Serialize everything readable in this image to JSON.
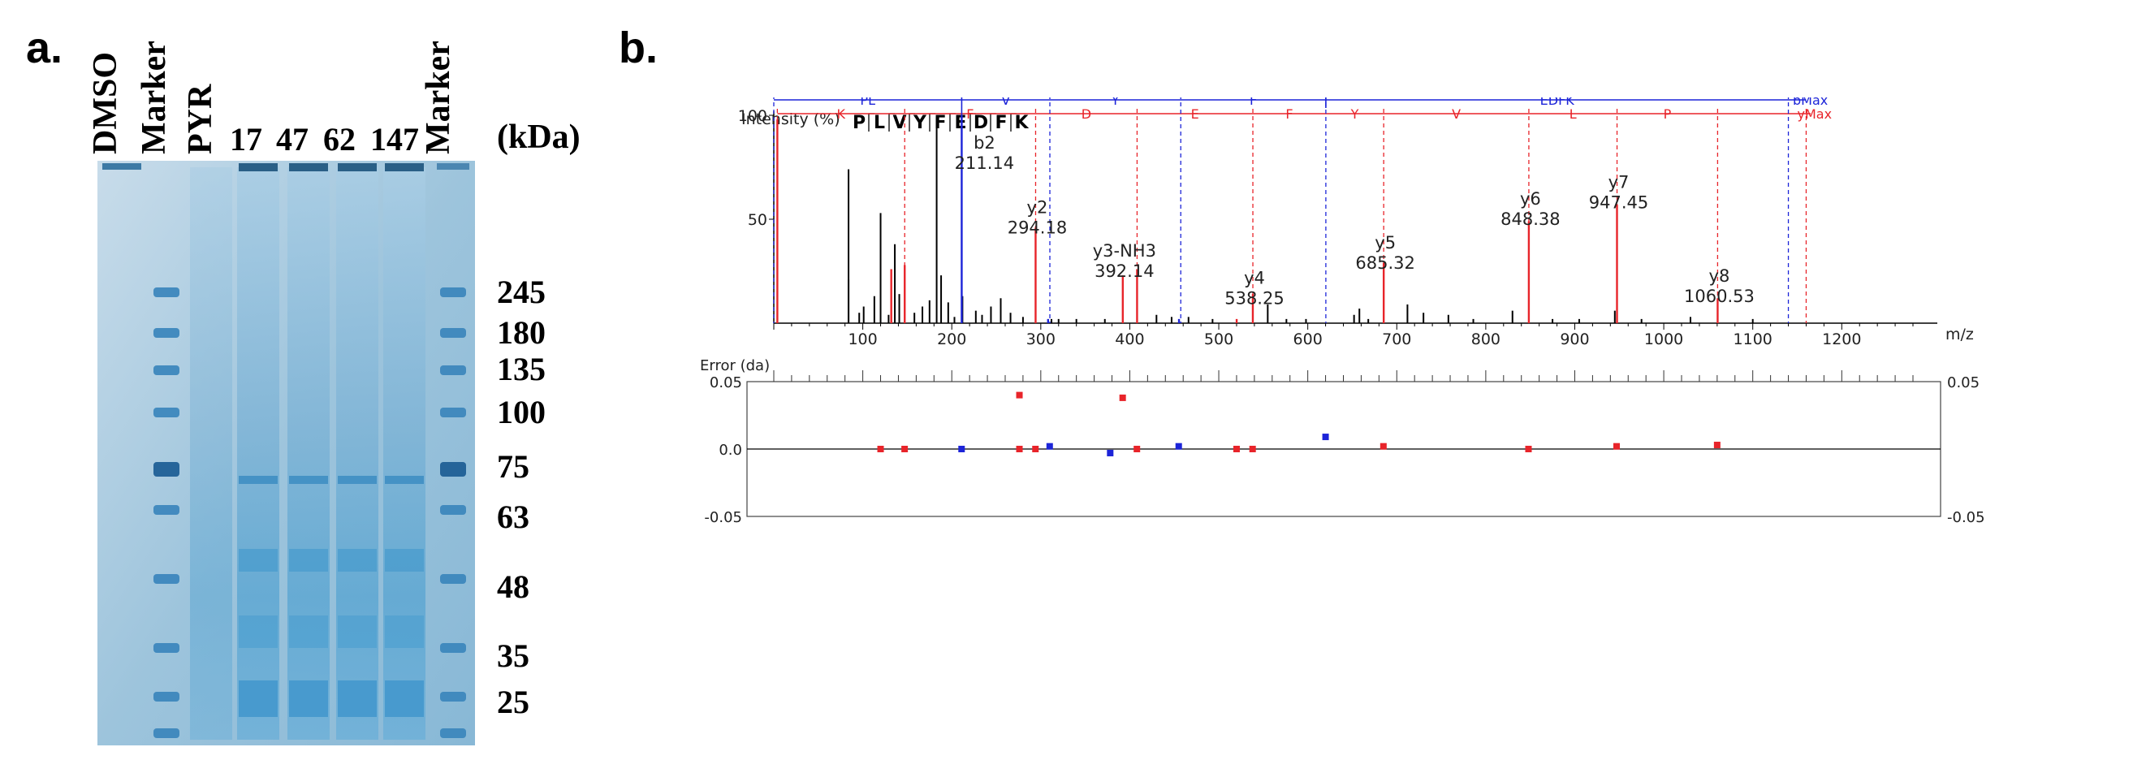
{
  "panel_a": {
    "label": "a.",
    "lanes": [
      "DMSO",
      "Marker",
      "PYR",
      "17",
      "47",
      "62",
      "147",
      "Marker"
    ],
    "unit": "(kDa)",
    "mw_markers": [
      "245",
      "180",
      "135",
      "100",
      "75",
      "63",
      "48",
      "35",
      "25"
    ]
  },
  "panel_b": {
    "label": "b.",
    "intensity_label": "Intensity (%)",
    "peptide": [
      "P",
      "L",
      "V",
      "Y",
      "F",
      "E",
      "D",
      "F",
      "K"
    ],
    "b_ions": [
      "PL",
      "V",
      "Y",
      "F",
      "EDFK",
      "bMax"
    ],
    "y_ions": [
      "K",
      "F",
      "D",
      "E",
      "F",
      "Y",
      "V",
      "L",
      "P",
      "yMax"
    ],
    "error_label": "Error (da)",
    "x_axis_label": "m/z"
  },
  "chart_data": [
    {
      "type": "bar",
      "x_axis": {
        "label": "m/z",
        "range": [
          0,
          1280
        ],
        "ticks": [
          "100",
          "200",
          "300",
          "400",
          "500",
          "600",
          "700",
          "800",
          "900",
          "1000",
          "1100",
          "1200"
        ]
      },
      "y_axis": {
        "range": [
          0,
          100
        ],
        "ticks": [
          "50",
          "100"
        ]
      },
      "annotated_peaks": [
        {
          "label": "b2",
          "value_label": "211.14",
          "x": 211.14,
          "y": 100,
          "series": "b"
        },
        {
          "label": "y2",
          "value_label": "294.18",
          "x": 294.18,
          "y": 46,
          "series": "y"
        },
        {
          "label": "y3-NH3",
          "value_label": "392.14",
          "x": 392.14,
          "y": 23,
          "series": "y"
        },
        {
          "label": "y4",
          "value_label": "538.25",
          "x": 538.25,
          "y": 14,
          "series": "y"
        },
        {
          "label": "y5",
          "value_label": "685.32",
          "x": 685.32,
          "y": 29,
          "series": "y"
        },
        {
          "label": "y6",
          "value_label": "848.38",
          "x": 848.38,
          "y": 49,
          "series": "y"
        },
        {
          "label": "y7",
          "value_label": "947.45",
          "x": 947.45,
          "y": 57,
          "series": "y"
        },
        {
          "label": "y8",
          "value_label": "1060.53",
          "x": 1060.53,
          "y": 12,
          "series": "y"
        }
      ],
      "matched_peaks": [
        {
          "x": 4,
          "y": 98,
          "series": "y"
        },
        {
          "x": 132,
          "y": 26,
          "series": "y"
        },
        {
          "x": 147.1,
          "y": 28,
          "series": "y"
        },
        {
          "x": 294.18,
          "y": 46,
          "series": "y"
        },
        {
          "x": 392.14,
          "y": 23,
          "series": "y"
        },
        {
          "x": 408.2,
          "y": 26,
          "series": "y"
        },
        {
          "x": 520.1,
          "y": 2,
          "series": "y"
        },
        {
          "x": 538.25,
          "y": 14,
          "series": "y"
        },
        {
          "x": 685.32,
          "y": 29,
          "series": "y"
        },
        {
          "x": 848.38,
          "y": 49,
          "series": "y"
        },
        {
          "x": 947.45,
          "y": 57,
          "series": "y"
        },
        {
          "x": 1060.53,
          "y": 12,
          "series": "y"
        },
        {
          "x": 211.14,
          "y": 100,
          "series": "b"
        },
        {
          "x": 308.2,
          "y": 2,
          "series": "b"
        },
        {
          "x": 455.3,
          "y": 2,
          "series": "b"
        }
      ],
      "unmatched_peaks": [
        {
          "x": 84,
          "y": 74
        },
        {
          "x": 84,
          "y": 21
        },
        {
          "x": 96,
          "y": 5
        },
        {
          "x": 101,
          "y": 8
        },
        {
          "x": 113,
          "y": 13
        },
        {
          "x": 120,
          "y": 53
        },
        {
          "x": 129,
          "y": 4
        },
        {
          "x": 136,
          "y": 38
        },
        {
          "x": 141,
          "y": 14
        },
        {
          "x": 158,
          "y": 5
        },
        {
          "x": 167,
          "y": 8
        },
        {
          "x": 175,
          "y": 11
        },
        {
          "x": 183,
          "y": 99
        },
        {
          "x": 188,
          "y": 23
        },
        {
          "x": 196,
          "y": 10
        },
        {
          "x": 203,
          "y": 3
        },
        {
          "x": 212,
          "y": 13
        },
        {
          "x": 227,
          "y": 6
        },
        {
          "x": 234,
          "y": 4
        },
        {
          "x": 244,
          "y": 8
        },
        {
          "x": 255,
          "y": 12
        },
        {
          "x": 266,
          "y": 5
        },
        {
          "x": 280,
          "y": 3
        },
        {
          "x": 312,
          "y": 2
        },
        {
          "x": 320,
          "y": 2
        },
        {
          "x": 340,
          "y": 2
        },
        {
          "x": 372,
          "y": 2
        },
        {
          "x": 430,
          "y": 4
        },
        {
          "x": 447,
          "y": 3
        },
        {
          "x": 466,
          "y": 3
        },
        {
          "x": 493,
          "y": 2
        },
        {
          "x": 555,
          "y": 9
        },
        {
          "x": 576,
          "y": 2
        },
        {
          "x": 598,
          "y": 2
        },
        {
          "x": 652,
          "y": 4
        },
        {
          "x": 658,
          "y": 7
        },
        {
          "x": 668,
          "y": 2
        },
        {
          "x": 712,
          "y": 9
        },
        {
          "x": 730,
          "y": 5
        },
        {
          "x": 758,
          "y": 4
        },
        {
          "x": 786,
          "y": 2
        },
        {
          "x": 830,
          "y": 6
        },
        {
          "x": 875,
          "y": 2
        },
        {
          "x": 905,
          "y": 2
        },
        {
          "x": 945,
          "y": 6
        },
        {
          "x": 975,
          "y": 2
        },
        {
          "x": 1030,
          "y": 3
        },
        {
          "x": 1100,
          "y": 2
        }
      ],
      "colors": {
        "b": "#1c24d8",
        "y": "#e8242a",
        "unmatched": "#000000"
      }
    },
    {
      "type": "scatter",
      "title": "Error (da)",
      "x_range": [
        0,
        1280
      ],
      "ylim": [
        -0.05,
        0.05
      ],
      "y_ticks": [
        "0.05",
        "0.0",
        "-0.05"
      ],
      "y_ticks_right": [
        "0.05",
        "-0.05"
      ],
      "points": [
        {
          "x": 120,
          "y": 0.0,
          "series": "y"
        },
        {
          "x": 147,
          "y": 0.0,
          "series": "y"
        },
        {
          "x": 211,
          "y": 0.0,
          "series": "b"
        },
        {
          "x": 276,
          "y": 0.0,
          "series": "y"
        },
        {
          "x": 276,
          "y": 0.04,
          "series": "y"
        },
        {
          "x": 294,
          "y": 0.0,
          "series": "y"
        },
        {
          "x": 310,
          "y": 0.002,
          "series": "b"
        },
        {
          "x": 378,
          "y": -0.003,
          "series": "b"
        },
        {
          "x": 392,
          "y": 0.038,
          "series": "y"
        },
        {
          "x": 408,
          "y": 0.0,
          "series": "y"
        },
        {
          "x": 455,
          "y": 0.002,
          "series": "b"
        },
        {
          "x": 520,
          "y": 0.0,
          "series": "y"
        },
        {
          "x": 538,
          "y": 0.0,
          "series": "y"
        },
        {
          "x": 620,
          "y": 0.009,
          "series": "b"
        },
        {
          "x": 685,
          "y": 0.002,
          "series": "y"
        },
        {
          "x": 848,
          "y": 0.0,
          "series": "y"
        },
        {
          "x": 947,
          "y": 0.002,
          "series": "y"
        },
        {
          "x": 1060,
          "y": 0.003,
          "series": "y"
        }
      ]
    }
  ]
}
